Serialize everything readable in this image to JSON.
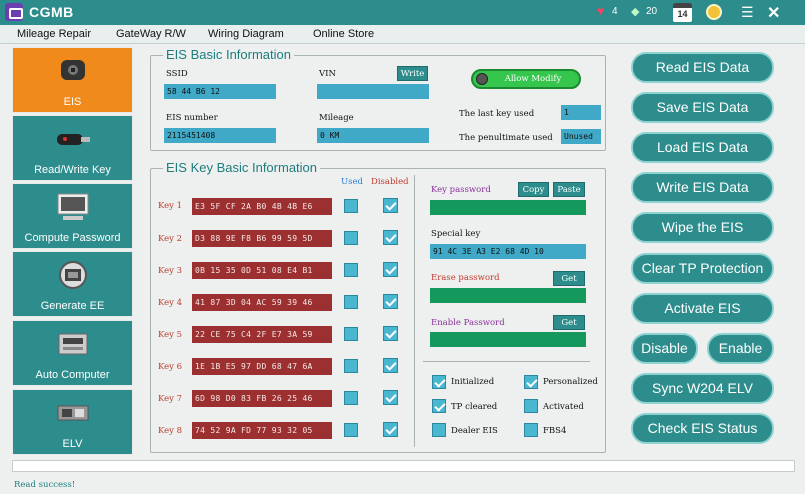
{
  "app": {
    "title": "CGMB",
    "hearts": "4",
    "gems": "20",
    "calendar_day": "14"
  },
  "menu": [
    "Mileage Repair",
    "GateWay R/W",
    "Wiring Diagram",
    "Online Store"
  ],
  "nav": [
    {
      "label": "EIS",
      "icon": "car-key-icon",
      "active": true
    },
    {
      "label": "Read/Write Key",
      "icon": "smart-key-icon",
      "active": false
    },
    {
      "label": "Compute Password",
      "icon": "computer-icon",
      "active": false
    },
    {
      "label": "Generate EE",
      "icon": "chip-reader-icon",
      "active": false
    },
    {
      "label": "Auto Computer",
      "icon": "ecu-icon",
      "active": false
    },
    {
      "label": "ELV",
      "icon": "elv-module-icon",
      "active": false
    }
  ],
  "eis_basic": {
    "title": "EIS Basic Information",
    "ssid_label": "SSID",
    "ssid_value": "58 44 B6 12",
    "vin_label": "VIN",
    "vin_value": "",
    "write_label": "Write",
    "allow_modify_label": "Allow Modify",
    "eis_number_label": "EIS number",
    "eis_number_value": "2115451408",
    "mileage_label": "Mileage",
    "mileage_value": "0 KM",
    "last_key_label": "The last key used",
    "last_key_value": "1",
    "penultimate_label": "The penultimate used",
    "penultimate_value": "Unused"
  },
  "eis_key": {
    "title": "EIS Key Basic Information",
    "used_header": "Used",
    "disabled_header": "Disabled",
    "keys": [
      {
        "label": "Key 1",
        "value": "E3 5F CF 2A B0 4B 4B E6"
      },
      {
        "label": "Key 2",
        "value": "D3 88 9E F8 B6 99 59 5D"
      },
      {
        "label": "Key 3",
        "value": "0B 15 35 0D 51 08 E4 B1"
      },
      {
        "label": "Key 4",
        "value": "41 87 3D 04 AC 59 39 46"
      },
      {
        "label": "Key 5",
        "value": "22 CE 75 C4 2F E7 3A 59"
      },
      {
        "label": "Key 6",
        "value": "1E 1B E5 97 DD 68 47 6A"
      },
      {
        "label": "Key 7",
        "value": "6D 98 D0 83 FB 26 25 46"
      },
      {
        "label": "Key 8",
        "value": "74 52 9A FD 77 93 32 05"
      }
    ],
    "key_password_label": "Key password",
    "copy_label": "Copy",
    "paste_label": "Paste",
    "special_key_label": "Special key",
    "special_key_value": "91 4C 3E A3 E2 68 4D 10",
    "erase_password_label": "Erase password",
    "get_label": "Get",
    "enable_password_label": "Enable Password",
    "flags": [
      {
        "label": "Initialized",
        "checked": true
      },
      {
        "label": "Personalized",
        "checked": true
      },
      {
        "label": "TP cleared",
        "checked": true
      },
      {
        "label": "Activated",
        "checked": false
      },
      {
        "label": "Dealer EIS",
        "checked": false
      },
      {
        "label": "FBS4",
        "checked": false
      }
    ]
  },
  "actions": {
    "read": "Read  EIS Data",
    "save": "Save EIS Data",
    "load": "Load EIS Data",
    "write": "Write EIS Data",
    "wipe": "Wipe the EIS",
    "clear_tp": "Clear TP Protection",
    "activate": "Activate EIS",
    "disable": "Disable",
    "enable": "Enable",
    "sync": "Sync W204 ELV",
    "check": "Check EIS Status"
  },
  "status": "Read  success!",
  "colors": {
    "teal": "#2d8c8c",
    "orange": "#f08a1a",
    "key_red": "#9c2f2f",
    "field_blue": "#3fa9c7",
    "field_green": "#15985b"
  }
}
